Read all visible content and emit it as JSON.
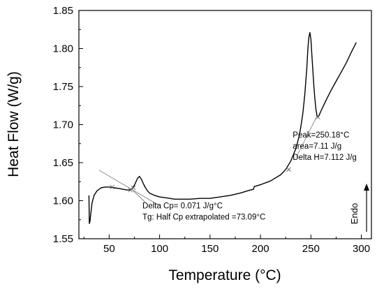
{
  "chart_data": {
    "type": "line",
    "xlabel": "Temperature (°C)",
    "ylabel": "Heat Flow (W/g)",
    "xlim": [
      20,
      310
    ],
    "ylim": [
      1.55,
      1.85
    ],
    "xticks": [
      50,
      100,
      150,
      200,
      250,
      300
    ],
    "xtick_labels": [
      "50",
      "100",
      "150",
      "200",
      "250",
      "300"
    ],
    "yticks": [
      1.55,
      1.6,
      1.65,
      1.7,
      1.75,
      1.8,
      1.85
    ],
    "ytick_labels": [
      "1.55",
      "1.60",
      "1.65",
      "1.70",
      "1.75",
      "1.80",
      "1.85"
    ],
    "grid": false,
    "series": [
      {
        "x": [
          30,
          30.3,
          31,
          32,
          33,
          35,
          38,
          42,
          46,
          50,
          55,
          60,
          64,
          68,
          70,
          72,
          74,
          76,
          78,
          80,
          82,
          84,
          86,
          88,
          90,
          95,
          100,
          105,
          110,
          115,
          120,
          130,
          140,
          150,
          160,
          170,
          180,
          190,
          193,
          194,
          195,
          200,
          210,
          220,
          225,
          230,
          235,
          238,
          240,
          242,
          244,
          246,
          247,
          248,
          249,
          250,
          251,
          252,
          253,
          254,
          255,
          256,
          257,
          258,
          260,
          265,
          270,
          275,
          280,
          285,
          290,
          295
        ],
        "y": [
          1.607,
          1.57,
          1.573,
          1.585,
          1.597,
          1.607,
          1.613,
          1.617,
          1.618,
          1.618,
          1.617,
          1.616,
          1.615,
          1.614,
          1.614,
          1.615,
          1.618,
          1.623,
          1.629,
          1.632,
          1.628,
          1.622,
          1.617,
          1.613,
          1.61,
          1.607,
          1.605,
          1.604,
          1.603,
          1.602,
          1.602,
          1.602,
          1.603,
          1.603,
          1.605,
          1.607,
          1.61,
          1.614,
          1.615,
          1.619,
          1.619,
          1.621,
          1.626,
          1.634,
          1.641,
          1.652,
          1.668,
          1.683,
          1.697,
          1.715,
          1.74,
          1.775,
          1.8,
          1.815,
          1.821,
          1.812,
          1.79,
          1.77,
          1.75,
          1.733,
          1.72,
          1.712,
          1.71,
          1.712,
          1.718,
          1.732,
          1.745,
          1.757,
          1.769,
          1.781,
          1.795,
          1.808
        ]
      }
    ],
    "baselines": [
      {
        "x": [
          40,
          98
        ],
        "y": [
          1.64,
          1.595
        ]
      },
      {
        "x": [
          235,
          256
        ],
        "y": [
          1.656,
          1.711
        ]
      }
    ],
    "baseline_markers": [
      {
        "x": 53,
        "y": 1.618
      },
      {
        "x": 71,
        "y": 1.614
      },
      {
        "x": 74,
        "y": 1.617
      },
      {
        "x": 228,
        "y": 1.641
      },
      {
        "x": 257,
        "y": 1.71
      }
    ],
    "annotations": [
      {
        "lines": [
          "Delta Cp= 0.071 J/g°C",
          "Tg: Half Cp extrapolated =73.09°C"
        ],
        "anchor_x": 73,
        "anchor_y": 1.614,
        "text_x": 83,
        "text_y": 1.59
      },
      {
        "lines": [
          "Peak=250.18°C",
          "area=7.11 J/g",
          "Delta H=7.112 J/g"
        ],
        "text_x": 232,
        "text_y": 1.683
      }
    ],
    "side_label": "Endo"
  }
}
